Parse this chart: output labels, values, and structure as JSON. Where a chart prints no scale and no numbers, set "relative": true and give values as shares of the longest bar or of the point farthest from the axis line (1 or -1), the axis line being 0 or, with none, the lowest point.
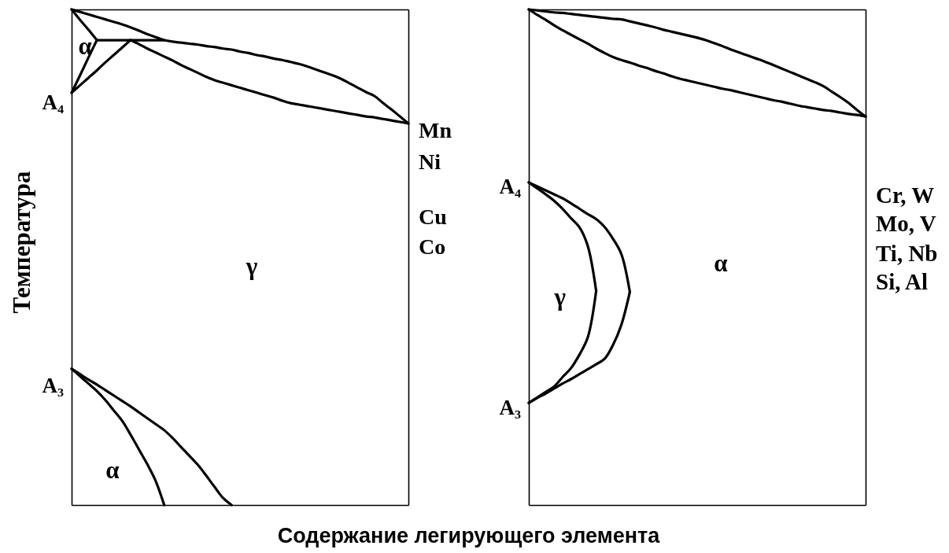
{
  "chart_data": [
    {
      "type": "line",
      "relative": true,
      "ylabel": "Температура",
      "xlabel": "Содержание легирующего элемента",
      "categories": [
        null,
        null,
        null,
        null,
        null,
        null,
        null,
        null,
        null,
        null,
        null,
        null,
        null,
        null,
        null,
        null,
        null,
        null,
        null,
        null,
        null,
        null,
        null,
        null,
        null,
        null,
        null,
        null,
        null,
        null,
        null,
        null,
        null,
        null,
        null,
        null,
        null,
        null,
        null,
        null,
        null
      ],
      "series": [
        {
          "color": "#000000",
          "values": [
            1,
            0.995,
            0.99,
            0.985,
            0.98,
            0.975,
            0.97,
            0.964,
            0.957,
            0.95,
            0.944,
            0.938,
            0.935,
            0.933,
            0.931,
            0.929,
            0.926,
            0.924,
            0.921,
            0.919,
            0.915,
            0.912,
            0.908,
            0.905,
            0.901,
            0.898,
            0.894,
            0.89,
            0.885,
            0.879,
            0.873,
            0.867,
            0.86,
            0.851,
            0.842,
            0.833,
            0.825,
            0.811,
            0.798,
            0.784,
            0.77
          ]
        },
        {
          "color": "#000000",
          "values": [
            null,
            null,
            null,
            null,
            null,
            null,
            null,
            0.938,
            0.93,
            0.921,
            0.913,
            0.905,
            0.897,
            0.888,
            0.88,
            0.872,
            0.864,
            0.857,
            0.852,
            0.847,
            0.842,
            0.837,
            0.832,
            0.827,
            0.822,
            0.816,
            0.811,
            0.808,
            0.805,
            0.802,
            0.799,
            0.796,
            0.793,
            0.79,
            0.787,
            0.784,
            0.782,
            0.779,
            0.776,
            0.773,
            0.77
          ]
        },
        {
          "color": "#000000",
          "values": [
            1,
            0.979,
            0.959,
            0.938,
            null,
            null,
            null,
            null,
            null,
            null,
            null,
            null,
            null,
            null,
            null,
            null,
            null,
            null,
            null,
            null,
            null,
            null,
            null,
            null,
            null,
            null,
            null,
            null,
            null,
            null,
            null,
            null,
            null,
            null,
            null,
            null,
            null,
            null,
            null,
            null,
            null
          ]
        },
        {
          "color": "#000000",
          "values": [
            null,
            null,
            null,
            0.938,
            0.938,
            0.938,
            0.938,
            0.938,
            0.938,
            0.938,
            0.938,
            0.938,
            null,
            null,
            null,
            null,
            null,
            null,
            null,
            null,
            null,
            null,
            null,
            null,
            null,
            null,
            null,
            null,
            null,
            null,
            null,
            null,
            null,
            null,
            null,
            null,
            null,
            null,
            null,
            null,
            null
          ]
        },
        {
          "color": "#000000",
          "values": [
            0.832,
            0.867,
            0.903,
            0.938,
            null,
            null,
            null,
            null,
            null,
            null,
            null,
            null,
            null,
            null,
            null,
            null,
            null,
            null,
            null,
            null,
            null,
            null,
            null,
            null,
            null,
            null,
            null,
            null,
            null,
            null,
            null,
            null,
            null,
            null,
            null,
            null,
            null,
            null,
            null,
            null,
            null
          ]
        },
        {
          "color": "#000000",
          "values": [
            0.832,
            0.847,
            0.862,
            0.877,
            0.893,
            0.908,
            0.923,
            0.938,
            null,
            null,
            null,
            null,
            null,
            null,
            null,
            null,
            null,
            null,
            null,
            null,
            null,
            null,
            null,
            null,
            null,
            null,
            null,
            null,
            null,
            null,
            null,
            null,
            null,
            null,
            null,
            null,
            null,
            null,
            null,
            null,
            null
          ]
        },
        {
          "color": "#000000",
          "values": [
            0.275,
            0.26,
            0.245,
            0.23,
            0.212,
            0.191,
            0.17,
            0.142,
            0.112,
            0.082,
            0.048,
            0,
            null,
            null,
            null,
            null,
            null,
            null,
            null,
            null,
            null,
            null,
            null,
            null,
            null,
            null,
            null,
            null,
            null,
            null,
            null,
            null,
            null,
            null,
            null,
            null,
            null,
            null,
            null,
            null,
            null
          ]
        },
        {
          "color": "#000000",
          "values": [
            0.275,
            0.264,
            0.253,
            0.243,
            0.232,
            0.221,
            0.21,
            0.199,
            0.187,
            0.175,
            0.163,
            0.151,
            0.135,
            0.117,
            0.099,
            0.081,
            0.059,
            0.036,
            0.014,
            0,
            null,
            null,
            null,
            null,
            null,
            null,
            null,
            null,
            null,
            null,
            null,
            null,
            null,
            null,
            null,
            null,
            null,
            null,
            null,
            null,
            null
          ]
        }
      ],
      "annotations": [
        "α",
        "A₄",
        "A₃",
        "γ",
        "α",
        "Mn",
        "Ni",
        "Cu",
        "Co"
      ]
    },
    {
      "type": "line",
      "relative": true,
      "categories": [
        null,
        null,
        null,
        null,
        null,
        null,
        null,
        null,
        null,
        null,
        null,
        null,
        null,
        null,
        null,
        null,
        null,
        null,
        null,
        null,
        null,
        null,
        null,
        null,
        null,
        null,
        null,
        null,
        null,
        null,
        null,
        null,
        null,
        null,
        null,
        null,
        null,
        null,
        null,
        null,
        null
      ],
      "series": [
        {
          "color": "#000000",
          "values": [
            1,
            0.998,
            0.996,
            0.994,
            0.993,
            0.991,
            0.989,
            0.987,
            0.985,
            0.983,
            0.981,
            0.98,
            0.976,
            0.972,
            0.968,
            0.964,
            0.959,
            0.955,
            0.951,
            0.947,
            0.943,
            null,
            null,
            null,
            null,
            null,
            null,
            null,
            null,
            null,
            null,
            null,
            null,
            null,
            null,
            null,
            null,
            null,
            null,
            null,
            null
          ]
        },
        {
          "color": "#000000",
          "values": [
            null,
            null,
            null,
            null,
            null,
            null,
            null,
            null,
            null,
            null,
            null,
            null,
            null,
            null,
            null,
            null,
            null,
            null,
            null,
            null,
            0.943,
            0.938,
            0.932,
            0.926,
            0.919,
            0.913,
            0.907,
            0.901,
            0.895,
            0.888,
            0.881,
            0.874,
            0.867,
            0.86,
            0.853,
            0.845,
            0.834,
            0.823,
            0.811,
            0.797,
            0.784
          ]
        },
        {
          "color": "#000000",
          "values": [
            1,
            0.989,
            0.979,
            0.968,
            0.958,
            0.949,
            0.94,
            0.931,
            0.921,
            0.912,
            0.904,
            0.898,
            0.893,
            0.887,
            0.882,
            0.876,
            0.871,
            0.865,
            0.86,
            0.856,
            0.852,
            0.848,
            0.844,
            0.84,
            0.837,
            0.833,
            0.829,
            0.825,
            0.821,
            0.817,
            0.814,
            0.81,
            0.806,
            0.803,
            0.8,
            0.797,
            0.795,
            0.792,
            0.789,
            0.787,
            0.784
          ]
        },
        {
          "color": "#000000",
          "values": [
            0.651,
            0.639,
            0.627,
            0.614,
            0.598,
            0.579,
            0.561,
            0.523,
            0.432,
            null,
            null,
            null,
            null,
            null,
            null,
            null,
            null,
            null,
            null,
            null,
            null,
            null,
            null,
            null,
            null,
            null,
            null,
            null,
            null,
            null,
            null,
            null,
            null,
            null,
            null,
            null,
            null,
            null,
            null,
            null,
            null
          ]
        },
        {
          "color": "#000000",
          "values": [
            0.206,
            0.217,
            0.228,
            0.239,
            0.258,
            0.276,
            0.303,
            0.338,
            0.432,
            null,
            null,
            null,
            null,
            null,
            null,
            null,
            null,
            null,
            null,
            null,
            null,
            null,
            null,
            null,
            null,
            null,
            null,
            null,
            null,
            null,
            null,
            null,
            null,
            null,
            null,
            null,
            null,
            null,
            null,
            null,
            null
          ]
        },
        {
          "color": "#000000",
          "values": [
            0.651,
            0.643,
            0.635,
            0.627,
            0.619,
            0.609,
            0.598,
            0.587,
            0.577,
            0.561,
            0.537,
            0.506,
            0.43,
            null,
            null,
            null,
            null,
            null,
            null,
            null,
            null,
            null,
            null,
            null,
            null,
            null,
            null,
            null,
            null,
            null,
            null,
            null,
            null,
            null,
            null,
            null,
            null,
            null,
            null,
            null,
            null
          ]
        },
        {
          "color": "#000000",
          "values": [
            0.206,
            0.216,
            0.225,
            0.235,
            0.245,
            0.254,
            0.264,
            0.274,
            0.284,
            0.295,
            0.323,
            0.364,
            0.43,
            null,
            null,
            null,
            null,
            null,
            null,
            null,
            null,
            null,
            null,
            null,
            null,
            null,
            null,
            null,
            null,
            null,
            null,
            null,
            null,
            null,
            null,
            null,
            null,
            null,
            null,
            null,
            null
          ]
        }
      ],
      "annotations": [
        "A₄",
        "A₃",
        "γ",
        "α",
        "Cr, W",
        "Mo, V",
        "Ti, Nb",
        "Si, Al"
      ]
    }
  ]
}
